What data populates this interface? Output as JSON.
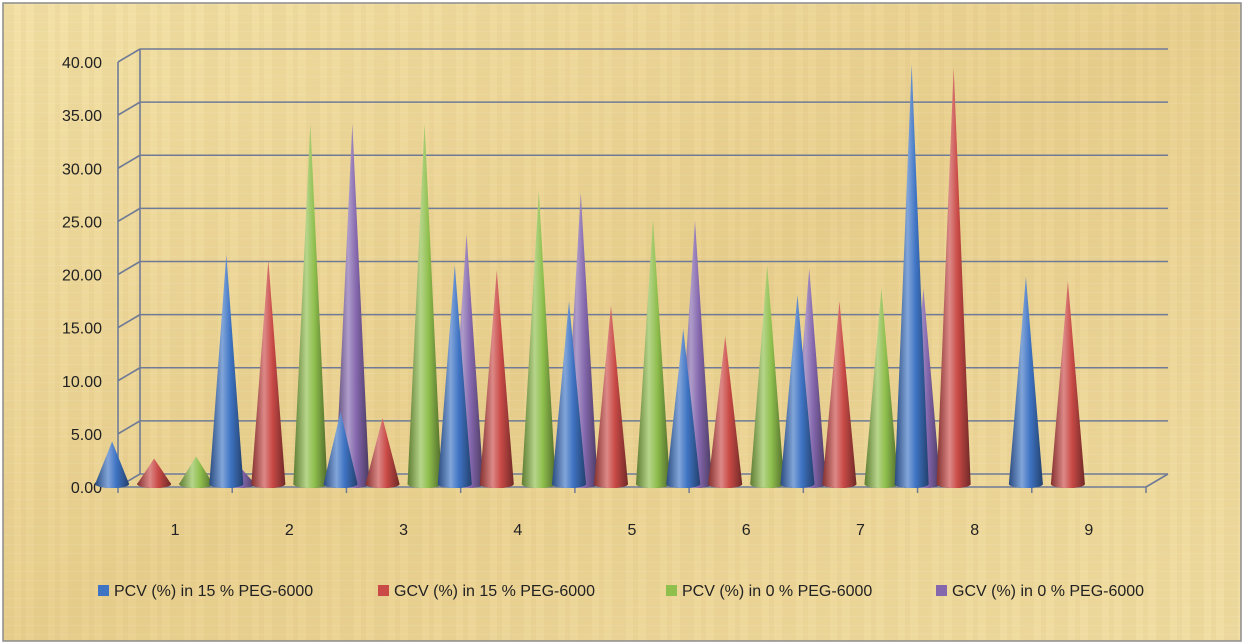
{
  "chart_data": {
    "type": "bar",
    "style": "3d-cone",
    "categories": [
      "1",
      "2",
      "3",
      "4",
      "5",
      "6",
      "7",
      "8",
      "9"
    ],
    "series": [
      {
        "name": "PCV (%) in 15 % PEG-6000",
        "color": "#3f74c4",
        "values": [
          4.1,
          21.7,
          6.9,
          20.7,
          17.3,
          14.7,
          17.9,
          39.6,
          19.6
        ]
      },
      {
        "name": "GCV (%) in 15 % PEG-6000",
        "color": "#c94a46",
        "values": [
          2.5,
          21.2,
          6.3,
          20.2,
          16.9,
          14.0,
          17.3,
          39.3,
          19.2
        ]
      },
      {
        "name": "PCV (%) in 0 % PEG-6000",
        "color": "#8fbf4d",
        "values": [
          2.7,
          34.0,
          34.0,
          27.7,
          25.0,
          20.7,
          18.5,
          null,
          null
        ]
      },
      {
        "name": "GCV (%) in 0 % PEG-6000",
        "color": "#8467ad",
        "values": [
          1.9,
          34.0,
          23.6,
          27.5,
          24.9,
          20.4,
          18.5,
          null,
          null
        ]
      }
    ],
    "yticks": [
      "0.00",
      "5.00",
      "10.00",
      "15.00",
      "20.00",
      "25.00",
      "30.00",
      "35.00",
      "40.00"
    ],
    "ylim": [
      0,
      40
    ],
    "grid": true,
    "legend_position": "bottom",
    "background": "parchment"
  }
}
